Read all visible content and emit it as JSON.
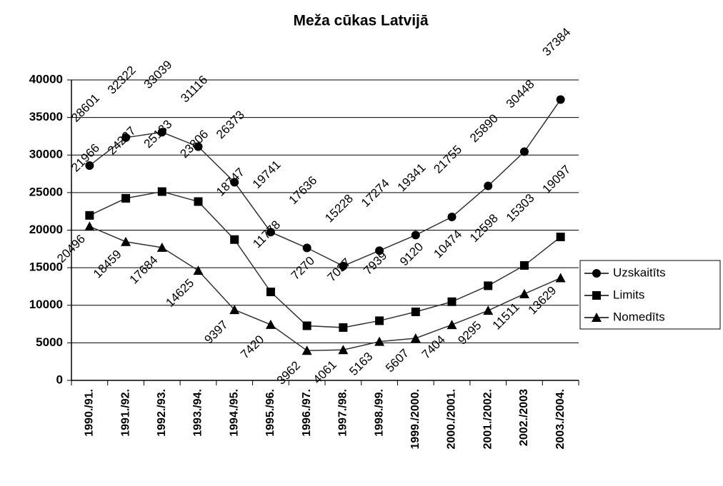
{
  "chart_data": {
    "type": "line",
    "title": "Meža cūkas Latvijā",
    "categories": [
      "1990./91.",
      "1991./92.",
      "1992./93.",
      "1993./94.",
      "1994./95.",
      "1995./96.",
      "1996./97.",
      "1997./98.",
      "1998./99.",
      "1999./2000.",
      "2000./2001.",
      "2001./2002.",
      "2002./2003",
      "2003./2004."
    ],
    "series": [
      {
        "name": "Uzskaitīts",
        "color": "#000000",
        "marker": "circle",
        "values": [
          28601,
          32322,
          33039,
          31116,
          26373,
          19741,
          17636,
          15228,
          17274,
          19341,
          21755,
          25890,
          30448,
          37384
        ]
      },
      {
        "name": "Limits",
        "color": "#000000",
        "marker": "square",
        "values": [
          21966,
          24237,
          25133,
          23806,
          18747,
          11778,
          7270,
          7037,
          7939,
          9120,
          10474,
          12598,
          15303,
          19097
        ]
      },
      {
        "name": "Nomedīts",
        "color": "#000000",
        "marker": "triangle",
        "values": [
          20496,
          18459,
          17684,
          14625,
          9397,
          7420,
          3962,
          4061,
          5163,
          5607,
          7404,
          9295,
          11511,
          13629
        ]
      }
    ],
    "ylim": [
      0,
      40000
    ],
    "yticks": [
      0,
      5000,
      10000,
      15000,
      20000,
      25000,
      30000,
      35000,
      40000
    ],
    "grid": true,
    "legend": "right"
  }
}
